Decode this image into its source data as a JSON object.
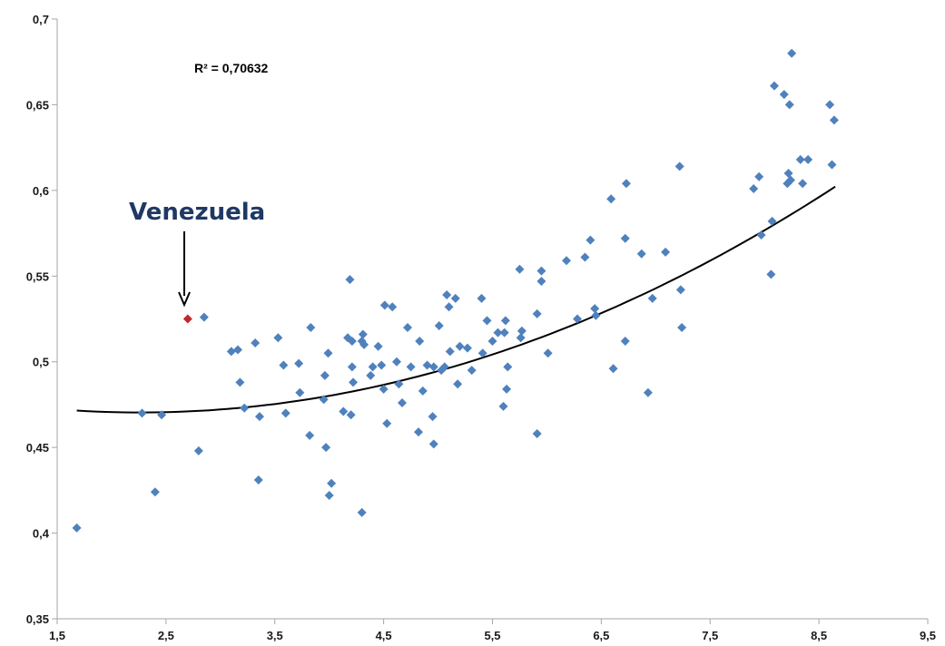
{
  "chart_data": {
    "type": "scatter",
    "title": "",
    "xlabel": "",
    "ylabel": "",
    "xlim": [
      1.5,
      9.5
    ],
    "ylim": [
      0.35,
      0.7
    ],
    "x_ticks": [
      1.5,
      2.5,
      3.5,
      4.5,
      5.5,
      6.5,
      7.5,
      8.5,
      9.5
    ],
    "y_ticks": [
      0.35,
      0.4,
      0.45,
      0.5,
      0.55,
      0.6,
      0.65,
      0.7
    ],
    "x_tick_labels": [
      "1,5",
      "2,5",
      "3,5",
      "4,5",
      "5,5",
      "6,5",
      "7,5",
      "8,5",
      "9,5"
    ],
    "y_tick_labels": [
      "0,35",
      "0,4",
      "0,45",
      "0,5",
      "0,55",
      "0,6",
      "0,65",
      "0,7"
    ],
    "grid": false,
    "legend": "none",
    "colors": {
      "points": "#4f81bd",
      "highlight": "#c0272d",
      "trend": "#000000",
      "annotation": "#1f3864",
      "axis": "#a6a6a6"
    },
    "series": [
      {
        "points": [
          [
            1.68,
            0.403
          ],
          [
            2.28,
            0.47
          ],
          [
            2.4,
            0.424
          ],
          [
            2.46,
            0.469
          ],
          [
            2.8,
            0.448
          ],
          [
            2.85,
            0.526
          ],
          [
            3.1,
            0.506
          ],
          [
            3.16,
            0.507
          ],
          [
            3.18,
            0.488
          ],
          [
            3.22,
            0.473
          ],
          [
            3.32,
            0.511
          ],
          [
            3.35,
            0.431
          ],
          [
            3.36,
            0.468
          ],
          [
            3.53,
            0.514
          ],
          [
            3.58,
            0.498
          ],
          [
            3.6,
            0.47
          ],
          [
            3.72,
            0.499
          ],
          [
            3.73,
            0.482
          ],
          [
            3.82,
            0.457
          ],
          [
            3.83,
            0.52
          ],
          [
            3.95,
            0.478
          ],
          [
            3.96,
            0.492
          ],
          [
            3.97,
            0.45
          ],
          [
            3.99,
            0.505
          ],
          [
            4.0,
            0.422
          ],
          [
            4.02,
            0.429
          ],
          [
            4.13,
            0.471
          ],
          [
            4.17,
            0.514
          ],
          [
            4.19,
            0.548
          ],
          [
            4.2,
            0.469
          ],
          [
            4.21,
            0.512
          ],
          [
            4.21,
            0.497
          ],
          [
            4.22,
            0.488
          ],
          [
            4.3,
            0.512
          ],
          [
            4.31,
            0.516
          ],
          [
            4.32,
            0.51
          ],
          [
            4.3,
            0.412
          ],
          [
            4.38,
            0.492
          ],
          [
            4.4,
            0.497
          ],
          [
            4.45,
            0.509
          ],
          [
            4.48,
            0.498
          ],
          [
            4.5,
            0.484
          ],
          [
            4.51,
            0.533
          ],
          [
            4.53,
            0.464
          ],
          [
            4.58,
            0.532
          ],
          [
            4.62,
            0.5
          ],
          [
            4.64,
            0.487
          ],
          [
            4.67,
            0.476
          ],
          [
            4.72,
            0.52
          ],
          [
            4.75,
            0.497
          ],
          [
            4.82,
            0.459
          ],
          [
            4.83,
            0.512
          ],
          [
            4.86,
            0.483
          ],
          [
            4.9,
            0.498
          ],
          [
            4.95,
            0.468
          ],
          [
            4.96,
            0.452
          ],
          [
            4.96,
            0.497
          ],
          [
            5.01,
            0.521
          ],
          [
            5.03,
            0.495
          ],
          [
            5.06,
            0.497
          ],
          [
            5.08,
            0.539
          ],
          [
            5.1,
            0.532
          ],
          [
            5.11,
            0.506
          ],
          [
            5.16,
            0.537
          ],
          [
            5.18,
            0.487
          ],
          [
            5.2,
            0.509
          ],
          [
            5.27,
            0.508
          ],
          [
            5.31,
            0.495
          ],
          [
            5.4,
            0.537
          ],
          [
            5.41,
            0.505
          ],
          [
            5.45,
            0.524
          ],
          [
            5.5,
            0.512
          ],
          [
            5.55,
            0.517
          ],
          [
            5.6,
            0.474
          ],
          [
            5.61,
            0.517
          ],
          [
            5.62,
            0.524
          ],
          [
            5.63,
            0.484
          ],
          [
            5.64,
            0.497
          ],
          [
            5.75,
            0.554
          ],
          [
            5.76,
            0.514
          ],
          [
            5.77,
            0.518
          ],
          [
            5.91,
            0.528
          ],
          [
            5.91,
            0.458
          ],
          [
            5.95,
            0.553
          ],
          [
            5.95,
            0.547
          ],
          [
            6.01,
            0.505
          ],
          [
            6.18,
            0.559
          ],
          [
            6.28,
            0.525
          ],
          [
            6.35,
            0.561
          ],
          [
            6.4,
            0.571
          ],
          [
            6.44,
            0.531
          ],
          [
            6.45,
            0.527
          ],
          [
            6.59,
            0.595
          ],
          [
            6.61,
            0.496
          ],
          [
            6.72,
            0.512
          ],
          [
            6.72,
            0.572
          ],
          [
            6.73,
            0.604
          ],
          [
            6.87,
            0.563
          ],
          [
            6.93,
            0.482
          ],
          [
            6.97,
            0.537
          ],
          [
            7.09,
            0.564
          ],
          [
            7.22,
            0.614
          ],
          [
            7.23,
            0.542
          ],
          [
            7.24,
            0.52
          ],
          [
            7.9,
            0.601
          ],
          [
            7.95,
            0.608
          ],
          [
            7.97,
            0.574
          ],
          [
            8.06,
            0.551
          ],
          [
            8.07,
            0.582
          ],
          [
            8.09,
            0.661
          ],
          [
            8.18,
            0.656
          ],
          [
            8.21,
            0.604
          ],
          [
            8.22,
            0.61
          ],
          [
            8.23,
            0.65
          ],
          [
            8.24,
            0.606
          ],
          [
            8.25,
            0.68
          ],
          [
            8.33,
            0.618
          ],
          [
            8.35,
            0.604
          ],
          [
            8.4,
            0.618
          ],
          [
            8.6,
            0.65
          ],
          [
            8.62,
            0.615
          ],
          [
            8.64,
            0.641
          ]
        ]
      }
    ],
    "highlight": {
      "label": "Venezuela",
      "x": 2.7,
      "y": 0.525
    },
    "trendline": {
      "type": "polynomial",
      "coefficients": [
        0.487,
        -0.01465,
        0.003233
      ],
      "x_range": [
        1.68,
        8.65
      ]
    },
    "annotations": {
      "r2": "R² = 0,70632"
    }
  }
}
